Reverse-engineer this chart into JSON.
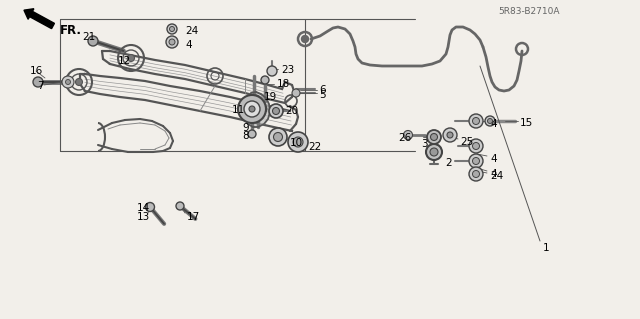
{
  "bg": "#f2efea",
  "lc": "#555555",
  "diagram_code": "5R83-B2710A",
  "fig_w": 6.4,
  "fig_h": 3.19,
  "dpi": 100
}
